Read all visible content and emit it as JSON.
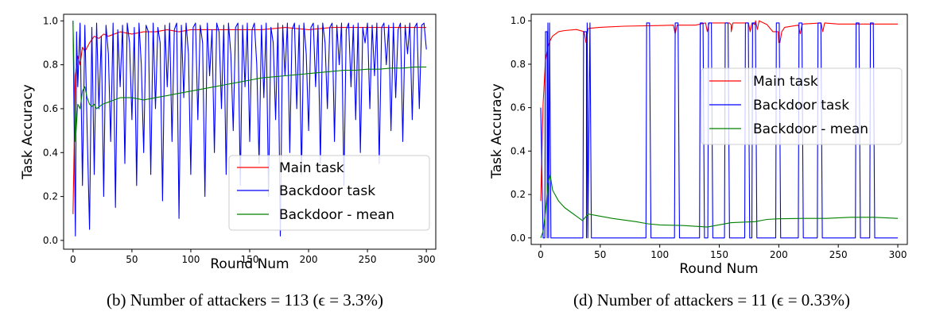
{
  "chart_data": [
    {
      "type": "line",
      "caption": "(b) Number of attackers = 113 (ϵ = 3.3%)",
      "xlabel": "Round Num",
      "ylabel": "Task Accuracy",
      "xlim": [
        -8,
        308
      ],
      "ylim": [
        -0.04,
        1.03
      ],
      "xticks": [
        "0",
        "50",
        "100",
        "150",
        "200",
        "250",
        "300"
      ],
      "yticks": [
        "0.0",
        "0.2",
        "0.4",
        "0.6",
        "0.8",
        "1.0"
      ],
      "legend_position": "lower-right",
      "series": [
        {
          "name": "Main task",
          "color": "#ff0000",
          "x": [
            0,
            2,
            4,
            6,
            8,
            10,
            14,
            18,
            22,
            26,
            30,
            40,
            50,
            60,
            70,
            80,
            90,
            100,
            120,
            140,
            160,
            180,
            200,
            220,
            240,
            260,
            280,
            300
          ],
          "y": [
            0.12,
            0.75,
            0.84,
            0.8,
            0.88,
            0.86,
            0.9,
            0.93,
            0.92,
            0.94,
            0.93,
            0.95,
            0.94,
            0.95,
            0.95,
            0.96,
            0.95,
            0.96,
            0.96,
            0.96,
            0.96,
            0.97,
            0.96,
            0.97,
            0.97,
            0.97,
            0.97,
            0.97
          ]
        },
        {
          "name": "Backdoor task",
          "color": "#0000ff",
          "x": [
            0,
            2,
            3,
            4,
            6,
            8,
            10,
            12,
            14,
            16,
            18,
            20,
            22,
            24,
            26,
            28,
            30,
            32,
            34,
            36,
            38,
            40,
            42,
            44,
            46,
            48,
            50,
            52,
            54,
            56,
            58,
            60,
            62,
            64,
            66,
            68,
            70,
            72,
            74,
            76,
            78,
            80,
            82,
            84,
            86,
            88,
            90,
            92,
            94,
            96,
            98,
            100,
            102,
            104,
            106,
            108,
            110,
            112,
            114,
            116,
            118,
            120,
            122,
            124,
            126,
            128,
            130,
            132,
            134,
            136,
            138,
            140,
            142,
            144,
            146,
            148,
            150,
            152,
            154,
            156,
            158,
            160,
            162,
            164,
            166,
            168,
            170,
            172,
            174,
            176,
            178,
            180,
            182,
            184,
            186,
            188,
            190,
            192,
            194,
            196,
            198,
            200,
            202,
            204,
            206,
            208,
            210,
            212,
            214,
            216,
            218,
            220,
            222,
            224,
            226,
            228,
            230,
            232,
            234,
            236,
            238,
            240,
            242,
            244,
            246,
            248,
            250,
            252,
            254,
            256,
            258,
            260,
            262,
            264,
            266,
            268,
            270,
            272,
            274,
            276,
            278,
            280,
            282,
            284,
            286,
            288,
            290,
            292,
            294,
            296,
            298,
            300
          ],
          "y": [
            1.0,
            0.02,
            0.95,
            0.7,
            0.99,
            0.25,
            0.98,
            0.5,
            0.05,
            0.97,
            0.3,
            0.99,
            0.6,
            0.93,
            0.2,
            0.98,
            0.85,
            0.45,
            0.99,
            0.15,
            0.96,
            0.7,
            0.98,
            0.35,
            0.99,
            0.9,
            0.55,
            0.97,
            0.25,
            0.99,
            0.8,
            0.4,
            0.98,
            0.95,
            0.3,
            0.99,
            0.6,
            0.97,
            0.9,
            0.18,
            0.98,
            0.7,
            0.99,
            0.45,
            0.96,
            0.99,
            0.1,
            0.98,
            0.65,
            0.99,
            0.85,
            0.3,
            0.97,
            0.99,
            0.55,
            0.98,
            0.9,
            0.2,
            0.99,
            0.75,
            0.96,
            0.4,
            0.99,
            0.95,
            0.6,
            0.98,
            0.3,
            0.99,
            0.85,
            0.5,
            0.97,
            0.99,
            0.25,
            0.98,
            0.7,
            0.99,
            0.45,
            0.96,
            0.99,
            0.8,
            0.35,
            0.98,
            0.65,
            0.99,
            0.2,
            0.97,
            0.9,
            0.55,
            0.99,
            0.02,
            0.98,
            0.75,
            0.99,
            0.4,
            0.96,
            0.99,
            0.6,
            0.98,
            0.3,
            0.99,
            0.85,
            0.5,
            0.97,
            0.99,
            0.7,
            0.98,
            0.35,
            0.99,
            0.9,
            0.6,
            0.97,
            0.99,
            0.45,
            0.98,
            0.8,
            0.99,
            0.25,
            0.96,
            0.99,
            0.7,
            0.98,
            0.55,
            0.99,
            0.4,
            0.97,
            0.9,
            0.99,
            0.6,
            0.98,
            0.75,
            0.99,
            0.35,
            0.97,
            0.99,
            0.8,
            0.98,
            0.5,
            0.99,
            0.65,
            0.96,
            0.99,
            0.45,
            0.98,
            0.85,
            0.99,
            0.55,
            0.97,
            0.99,
            0.6,
            0.98,
            0.99,
            0.87
          ]
        },
        {
          "name": "Backdoor - mean",
          "color": "#008000",
          "x": [
            0,
            2,
            4,
            6,
            8,
            10,
            12,
            14,
            16,
            18,
            20,
            25,
            30,
            40,
            50,
            60,
            70,
            80,
            90,
            100,
            110,
            120,
            130,
            140,
            150,
            160,
            170,
            180,
            190,
            200,
            210,
            220,
            230,
            240,
            250,
            260,
            270,
            280,
            290,
            300
          ],
          "y": [
            1.0,
            0.45,
            0.62,
            0.6,
            0.68,
            0.7,
            0.65,
            0.62,
            0.61,
            0.62,
            0.6,
            0.62,
            0.63,
            0.65,
            0.65,
            0.64,
            0.65,
            0.66,
            0.67,
            0.68,
            0.69,
            0.7,
            0.71,
            0.72,
            0.73,
            0.74,
            0.745,
            0.75,
            0.755,
            0.76,
            0.765,
            0.77,
            0.775,
            0.775,
            0.78,
            0.78,
            0.785,
            0.785,
            0.79,
            0.79
          ]
        }
      ]
    },
    {
      "type": "line",
      "caption": "(d) Number of attackers = 11 (ϵ = 0.33%)",
      "xlabel": "Round Num",
      "ylabel": "Task Accuracy",
      "xlim": [
        -8,
        308
      ],
      "ylim": [
        -0.03,
        1.03
      ],
      "xticks": [
        "0",
        "50",
        "100",
        "150",
        "200",
        "250",
        "300"
      ],
      "yticks": [
        "0.0",
        "0.2",
        "0.4",
        "0.6",
        "0.8",
        "1.0"
      ],
      "legend_position": "upper-right",
      "series": [
        {
          "name": "Main task",
          "color": "#ff0000",
          "x": [
            0,
            2,
            4,
            6,
            8,
            10,
            15,
            20,
            30,
            40,
            50,
            70,
            100,
            130,
            160,
            180,
            190,
            195,
            200,
            205,
            220,
            250,
            280,
            300
          ],
          "y": [
            0.17,
            0.62,
            0.82,
            0.88,
            0.91,
            0.93,
            0.95,
            0.955,
            0.96,
            0.965,
            0.97,
            0.975,
            0.978,
            0.98,
            0.982,
            0.983,
            0.983,
            0.95,
            0.9,
            0.97,
            0.985,
            0.985,
            0.985,
            0.985
          ],
          "dips": [
            {
              "x": 38,
              "y": 0.9
            },
            {
              "x": 113,
              "y": 0.94
            },
            {
              "x": 140,
              "y": 0.95
            },
            {
              "x": 160,
              "y": 0.95
            },
            {
              "x": 176,
              "y": 0.95
            },
            {
              "x": 182,
              "y": 0.96
            },
            {
              "x": 201,
              "y": 0.9
            },
            {
              "x": 218,
              "y": 0.94
            },
            {
              "x": 237,
              "y": 0.95
            }
          ]
        },
        {
          "name": "Backdoor task",
          "color": "#0000ff",
          "baseline": 0.0,
          "spikes": [
            {
              "x": 4,
              "width": 2,
              "top": 0.95
            },
            {
              "x": 6,
              "width": 2,
              "top": 0.99
            },
            {
              "x": 36,
              "width": 3,
              "top": 0.95
            },
            {
              "x": 39,
              "width": 3,
              "top": 0.99
            },
            {
              "x": 89,
              "width": 3,
              "top": 0.99
            },
            {
              "x": 113,
              "width": 3,
              "top": 0.99
            },
            {
              "x": 134,
              "width": 3,
              "top": 0.99
            },
            {
              "x": 141,
              "width": 3,
              "top": 0.99
            },
            {
              "x": 155,
              "width": 3,
              "top": 0.99
            },
            {
              "x": 172,
              "width": 3,
              "top": 0.99
            },
            {
              "x": 178,
              "width": 3,
              "top": 0.99
            },
            {
              "x": 198,
              "width": 3,
              "top": 0.99
            },
            {
              "x": 217,
              "width": 3,
              "top": 0.99
            },
            {
              "x": 233,
              "width": 3,
              "top": 0.99
            },
            {
              "x": 265,
              "width": 3,
              "top": 0.99
            },
            {
              "x": 277,
              "width": 3,
              "top": 0.99
            }
          ]
        },
        {
          "name": "Backdoor - mean",
          "color": "#008000",
          "x": [
            0,
            2,
            4,
            5,
            6,
            8,
            10,
            15,
            20,
            25,
            30,
            35,
            40,
            50,
            60,
            80,
            90,
            100,
            120,
            140,
            160,
            180,
            190,
            200,
            220,
            240,
            260,
            280,
            300
          ],
          "y": [
            0.0,
            0.03,
            0.12,
            0.18,
            0.25,
            0.29,
            0.22,
            0.17,
            0.14,
            0.12,
            0.1,
            0.08,
            0.11,
            0.1,
            0.09,
            0.075,
            0.065,
            0.06,
            0.057,
            0.05,
            0.07,
            0.075,
            0.085,
            0.088,
            0.09,
            0.09,
            0.095,
            0.095,
            0.09
          ]
        }
      ]
    }
  ]
}
